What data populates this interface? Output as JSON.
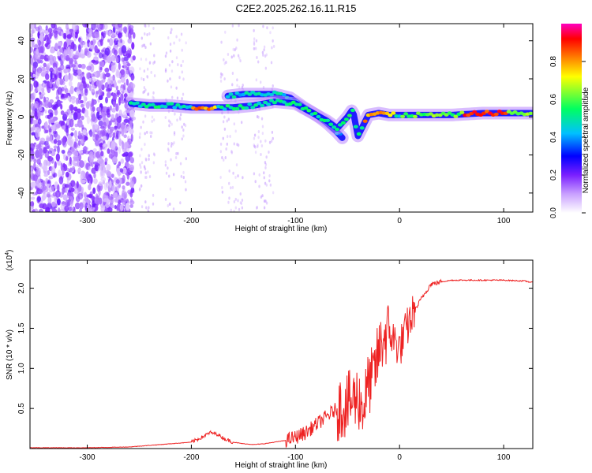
{
  "title": "C2E2.2025.262.16.11.R15",
  "chart_data": [
    {
      "type": "heatmap",
      "xlabel": "Height of straight line (km)",
      "ylabel": "Frequency (Hz)",
      "xlim": [
        -355,
        128
      ],
      "ylim": [
        -50,
        49
      ],
      "xticks": [
        -300,
        -200,
        -100,
        0,
        100
      ],
      "yticks": [
        -40,
        -20,
        0,
        20,
        40
      ],
      "colorbar": {
        "label": "Normalized spectral amplitude",
        "range": [
          0.0,
          1.0
        ],
        "ticks": [
          0.0,
          0.2,
          0.4,
          0.6,
          0.8
        ],
        "colormap": [
          "#ffffff",
          "#c9a0ff",
          "#7a1fff",
          "#0000ff",
          "#00c0ff",
          "#00ff60",
          "#ffff00",
          "#ff8000",
          "#ff0000",
          "#ff00c0"
        ]
      },
      "ridge": {
        "x": [
          -258,
          -240,
          -220,
          -200,
          -180,
          -160,
          -140,
          -120,
          -100,
          -90,
          -80,
          -70,
          -60,
          -50,
          -45,
          -40,
          -30,
          -20,
          -10,
          0,
          20,
          50,
          80,
          100,
          128
        ],
        "y": [
          7,
          6,
          6,
          5,
          5,
          5,
          6,
          8,
          7,
          4,
          1,
          -2,
          -6,
          0,
          4,
          -10,
          1,
          2,
          1,
          1,
          1,
          1,
          2,
          2,
          2
        ]
      },
      "branch": {
        "x": [
          -165,
          -150,
          -135,
          -120,
          -105,
          -92,
          -80,
          -70,
          -60,
          -55
        ],
        "y": [
          11,
          12,
          12,
          12,
          10,
          5,
          1,
          -3,
          -8,
          -11
        ]
      },
      "noise_region_x": [
        -355,
        -255
      ]
    },
    {
      "type": "line",
      "xlabel": "Height of straight line (km)",
      "ylabel": "SNR (10 * v/v)",
      "multiplier": "(x10",
      "multiplier_exp": "4",
      "xlim": [
        -355,
        128
      ],
      "ylim": [
        0,
        2.35
      ],
      "xticks": [
        -300,
        -200,
        -100,
        0,
        100
      ],
      "yticks": [
        0.5,
        1.0,
        1.5,
        2.0
      ],
      "color": "#ee2222",
      "x": [
        -355,
        -300,
        -260,
        -240,
        -220,
        -200,
        -190,
        -182,
        -175,
        -168,
        -160,
        -150,
        -140,
        -130,
        -120,
        -110,
        -100,
        -90,
        -80,
        -70,
        -60,
        -50,
        -45,
        -40,
        -35,
        -30,
        -25,
        -20,
        -15,
        -10,
        -5,
        0,
        10,
        20,
        30,
        40,
        50,
        70,
        100,
        120,
        128
      ],
      "y": [
        0.01,
        0.01,
        0.02,
        0.04,
        0.06,
        0.08,
        0.14,
        0.2,
        0.18,
        0.12,
        0.08,
        0.06,
        0.05,
        0.06,
        0.08,
        0.1,
        0.14,
        0.2,
        0.3,
        0.4,
        0.5,
        0.55,
        0.6,
        0.65,
        0.5,
        0.8,
        0.9,
        1.2,
        1.4,
        1.45,
        1.35,
        1.25,
        1.6,
        1.85,
        2.05,
        2.08,
        2.1,
        2.1,
        2.1,
        2.09,
        2.07
      ]
    }
  ]
}
